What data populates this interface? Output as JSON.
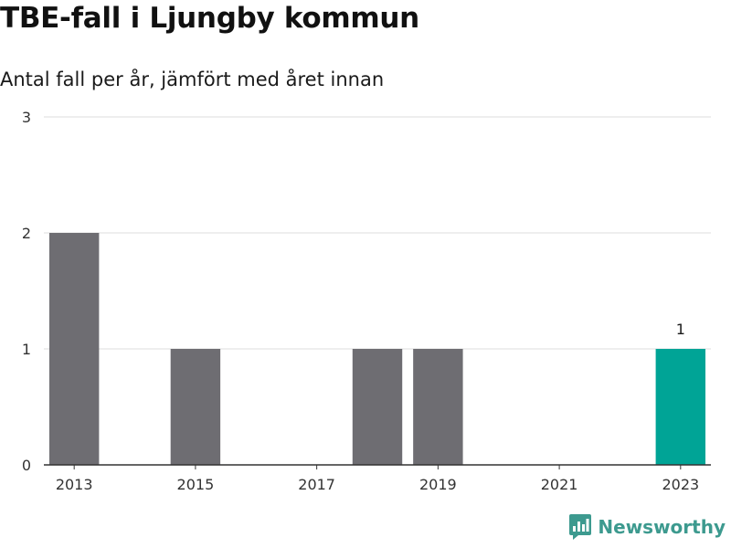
{
  "header": {
    "title": "TBE-fall i Ljungby kommun",
    "subtitle": "Antal fall per år, jämfört med året innan"
  },
  "brand": {
    "name": "Newsworthy",
    "icon": "newsworthy-logo-icon",
    "color": "#3d9a8f"
  },
  "colors": {
    "bar_default": "#6e6d72",
    "bar_highlight": "#00a496",
    "grid": "#dddddd",
    "axis": "#333333"
  },
  "chart_data": {
    "type": "bar",
    "categories": [
      "2013",
      "2014",
      "2015",
      "2016",
      "2017",
      "2018",
      "2019",
      "2020",
      "2021",
      "2022",
      "2023"
    ],
    "values": [
      2,
      0,
      1,
      0,
      0,
      1,
      1,
      0,
      0,
      0,
      1
    ],
    "highlight": "2023",
    "data_labels": [
      {
        "category": "2023",
        "label": "1"
      }
    ],
    "x_tick_labels": [
      "2013",
      "2015",
      "2017",
      "2019",
      "2021",
      "2023"
    ],
    "y_ticks": [
      0,
      1,
      2,
      3
    ],
    "ylim": [
      0,
      3
    ],
    "xlabel": "",
    "ylabel": "",
    "grid": true
  }
}
